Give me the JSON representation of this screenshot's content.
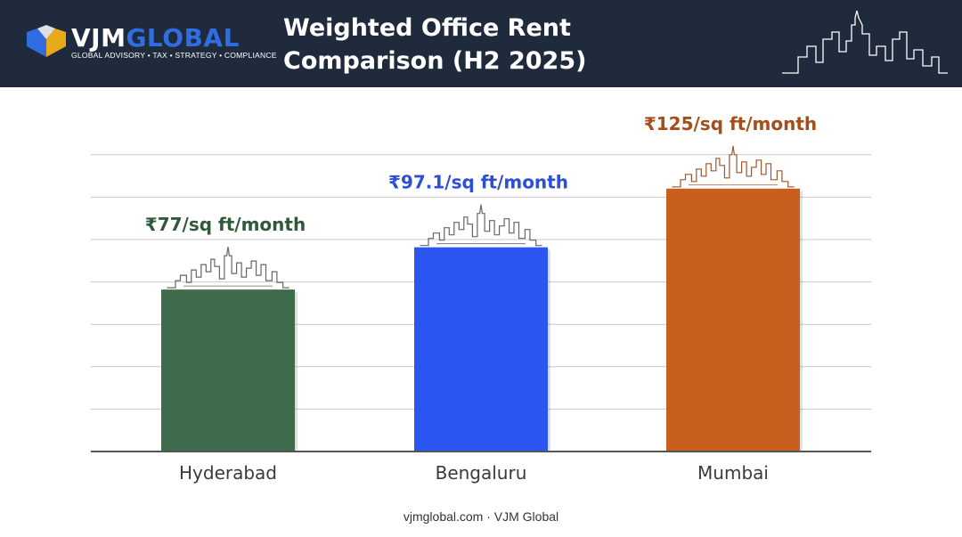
{
  "header": {
    "brand_vjm": "VJM",
    "brand_global": "GLOBAL",
    "tagline": "GLOBAL ADVISORY • TAX • STRATEGY • COMPLIANCE",
    "title_line1": "Weighted Office Rent",
    "title_line2": "Comparison (H2 2025)"
  },
  "colors": {
    "header_bg": "#1f2a3c",
    "brand_blue": "#2f6de0",
    "hyderabad": "#3d6b4b",
    "bengaluru": "#2c56f2",
    "mumbai": "#c85f1f",
    "hyderabad_label": "#2f5a3a",
    "bengaluru_label": "#2c4fd6",
    "mumbai_label": "#a44f1a"
  },
  "chart_data": {
    "type": "bar",
    "categories": [
      "Hyderabad",
      "Bengaluru",
      "Mumbai"
    ],
    "values": [
      77,
      97.1,
      125
    ],
    "data_labels": [
      "₹77/sq ft/month",
      "₹97.1/sq ft/month",
      "₹125/sq ft/month"
    ],
    "title": "Weighted Office Rent Comparison (H2 2025)",
    "xlabel": "",
    "ylabel": "",
    "ylim": [
      0,
      141
    ],
    "grid": true,
    "legend": "none"
  },
  "footer": {
    "text": "vjmglobal.com · VJM Global"
  }
}
